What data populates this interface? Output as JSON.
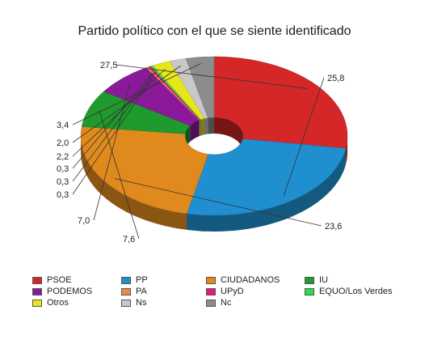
{
  "chart_data": {
    "type": "pie",
    "title": "Partido político con el que se siente identificado",
    "categories": [
      "PSOE",
      "PP",
      "CIUDADANOS",
      "IU",
      "PODEMOS",
      "PA",
      "UPyD",
      "EQUO/Los Verdes",
      "Otros",
      "Ns",
      "Nc"
    ],
    "slices": [
      {
        "name": "PSOE",
        "value": 27.5,
        "label": "27,5",
        "color": "#d62728"
      },
      {
        "name": "PP",
        "value": 25.8,
        "label": "25,8",
        "color": "#1f8fcf"
      },
      {
        "name": "CIUDADANOS",
        "value": 23.6,
        "label": "23,6",
        "color": "#e08a1e"
      },
      {
        "name": "IU",
        "value": 7.6,
        "label": "7,6",
        "color": "#1f9a2c"
      },
      {
        "name": "PODEMOS",
        "value": 7.0,
        "label": "7,0",
        "color": "#8b1a9b"
      },
      {
        "name": "PA",
        "value": 0.3,
        "label": "0,3",
        "color": "#f08a4b"
      },
      {
        "name": "UPyD",
        "value": 0.3,
        "label": "0,3",
        "color": "#e8177f"
      },
      {
        "name": "EQUO/Los Verdes",
        "value": 0.3,
        "label": "0,3",
        "color": "#22e04a"
      },
      {
        "name": "Otros",
        "value": 2.2,
        "label": "2,2",
        "color": "#e6e61a"
      },
      {
        "name": "Ns",
        "value": 2.0,
        "label": "2,0",
        "color": "#c8c8c8"
      },
      {
        "name": "Nc",
        "value": 3.4,
        "label": "3,4",
        "color": "#8c8c8c"
      }
    ],
    "legend": {
      "placement": "bottom"
    }
  }
}
